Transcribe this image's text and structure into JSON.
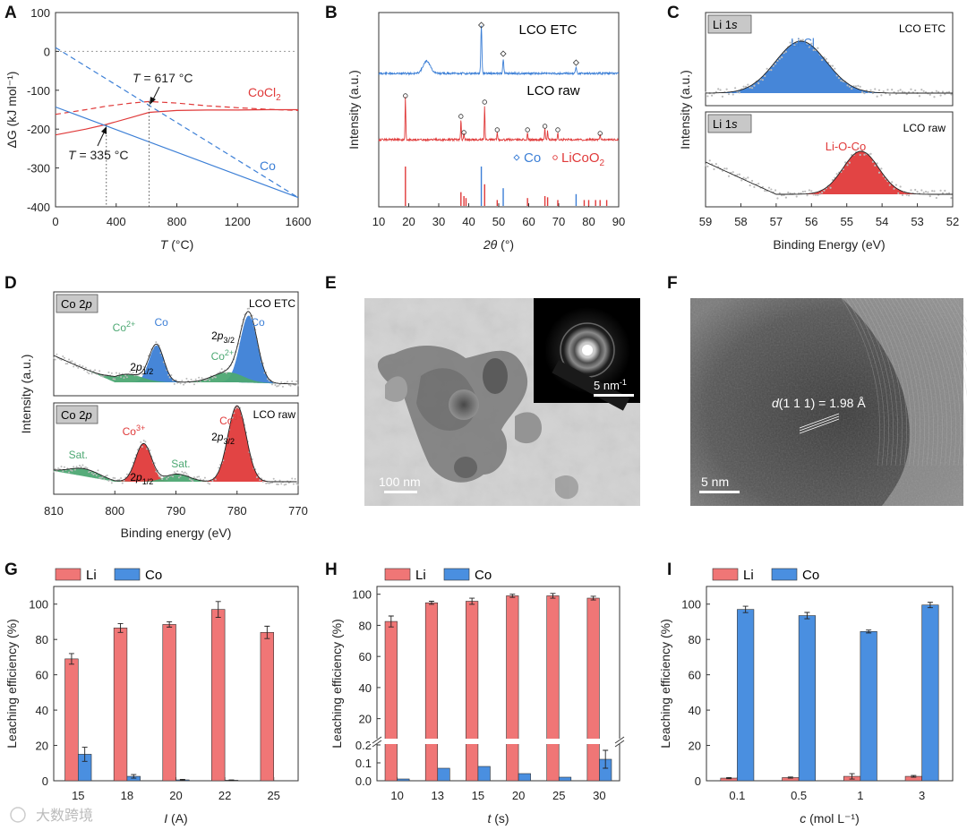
{
  "watermark": "大数跨境",
  "panels": {
    "A": {
      "letter": "A"
    },
    "B": {
      "letter": "B"
    },
    "C": {
      "letter": "C"
    },
    "D": {
      "letter": "D"
    },
    "E": {
      "letter": "E"
    },
    "F": {
      "letter": "F"
    },
    "G": {
      "letter": "G"
    },
    "H": {
      "letter": "H"
    },
    "I": {
      "letter": "I"
    }
  },
  "chart_data": [
    {
      "id": "A",
      "type": "line",
      "xlabel_italic": "T",
      "xlabel_unit": " (°C)",
      "ylabel": "ΔG (kJ mol⁻¹)",
      "xlim": [
        0,
        1600
      ],
      "ylim": [
        -400,
        100
      ],
      "xticks": [
        0,
        400,
        800,
        1200,
        1600
      ],
      "yticks": [
        100,
        0,
        -100,
        -200,
        -300,
        -400
      ],
      "series": [
        {
          "name": "CoCl2 solid",
          "color": "#e03a3a",
          "dash": false,
          "x": [
            0,
            200,
            335,
            500,
            617,
            800,
            1000,
            1200,
            1400,
            1600
          ],
          "y": [
            -215,
            -200,
            -188,
            -170,
            -157,
            -152,
            -151,
            -151,
            -150,
            -150
          ]
        },
        {
          "name": "CoCl2 dashed",
          "color": "#e03a3a",
          "dash": true,
          "x": [
            0,
            200,
            335,
            500,
            617,
            800,
            1000,
            1200,
            1400,
            1600
          ],
          "y": [
            -162,
            -150,
            -141,
            -133,
            -129,
            -133,
            -140,
            -145,
            -149,
            -152
          ]
        },
        {
          "name": "Co solid",
          "color": "#3c7fd6",
          "dash": false,
          "x": [
            0,
            1600
          ],
          "y": [
            -143,
            -376
          ]
        },
        {
          "name": "Co dashed",
          "color": "#3c7fd6",
          "dash": true,
          "x": [
            0,
            1600
          ],
          "y": [
            10,
            -376
          ]
        }
      ],
      "labels": {
        "cocl2_main": "CoCl",
        "cocl2_sub": "2",
        "co": "Co"
      },
      "annotations": [
        {
          "italic": "T",
          "text": " = 617 °C",
          "x": 617
        },
        {
          "italic": "T",
          "text": " = 335 °C",
          "x": 335
        }
      ]
    },
    {
      "id": "B",
      "type": "line",
      "xlabel_italic": "2θ",
      "xlabel_unit": " (°)",
      "ylabel": "Intensity (a.u.)",
      "xlim": [
        10,
        90
      ],
      "xticks": [
        10,
        20,
        30,
        40,
        50,
        60,
        70,
        80,
        90
      ],
      "traces": [
        {
          "name": "LCO ETC",
          "color": "#3c7fd6"
        },
        {
          "name": "LCO raw",
          "color": "#e03a3a"
        }
      ],
      "etc_peaks": [
        {
          "x": 26,
          "h": 0.25,
          "w": 1.2
        },
        {
          "x": 44.2,
          "h": 0.95,
          "w": 0.18
        },
        {
          "x": 51.5,
          "h": 0.28,
          "w": 0.18
        },
        {
          "x": 75.8,
          "h": 0.12,
          "w": 0.2
        }
      ],
      "etc_markers": [
        44.2,
        51.5,
        75.8
      ],
      "raw_peaks": [
        {
          "x": 18.9,
          "h": 0.95,
          "w": 0.12
        },
        {
          "x": 37.4,
          "h": 0.45,
          "w": 0.12
        },
        {
          "x": 38.4,
          "h": 0.15,
          "w": 0.12
        },
        {
          "x": 45.3,
          "h": 0.75,
          "w": 0.12
        },
        {
          "x": 49.5,
          "h": 0.18,
          "w": 0.12
        },
        {
          "x": 59.6,
          "h": 0.18,
          "w": 0.12
        },
        {
          "x": 65.4,
          "h": 0.28,
          "w": 0.12
        },
        {
          "x": 66.3,
          "h": 0.2,
          "w": 0.12
        },
        {
          "x": 69.7,
          "h": 0.15,
          "w": 0.12
        },
        {
          "x": 83.8,
          "h": 0.12,
          "w": 0.12
        }
      ],
      "raw_markers": [
        18.9,
        37.4,
        38.4,
        45.3,
        49.5,
        59.6,
        65.4,
        69.7,
        83.8
      ],
      "ref_co": [
        {
          "x": 44.2,
          "h": 1.0
        },
        {
          "x": 51.5,
          "h": 0.45
        },
        {
          "x": 75.8,
          "h": 0.3
        }
      ],
      "ref_lco": [
        {
          "x": 18.9,
          "h": 1.0
        },
        {
          "x": 37.4,
          "h": 0.35
        },
        {
          "x": 38.4,
          "h": 0.25
        },
        {
          "x": 39.1,
          "h": 0.2
        },
        {
          "x": 45.3,
          "h": 0.55
        },
        {
          "x": 49.5,
          "h": 0.15
        },
        {
          "x": 59.6,
          "h": 0.2
        },
        {
          "x": 65.4,
          "h": 0.25
        },
        {
          "x": 66.3,
          "h": 0.22
        },
        {
          "x": 69.7,
          "h": 0.15
        },
        {
          "x": 78.5,
          "h": 0.15
        },
        {
          "x": 80.0,
          "h": 0.15
        },
        {
          "x": 82.3,
          "h": 0.15
        },
        {
          "x": 83.8,
          "h": 0.15
        },
        {
          "x": 86.0,
          "h": 0.15
        }
      ],
      "legend": {
        "co": "Co",
        "lco_main": "LiCoO",
        "lco_sub": "2"
      }
    },
    {
      "id": "C",
      "type": "area",
      "xlabel": "Binding Energy (eV)",
      "ylabel": "Intensity (a.u.)",
      "xlim": [
        59,
        52
      ],
      "xticks": [
        59,
        58,
        57,
        56,
        55,
        54,
        53,
        52
      ],
      "top": {
        "tag_main": "Li 1",
        "tag_it": "s",
        "sample": "LCO ETC",
        "peak": "Li-Cl",
        "center": 56.3,
        "fwhm": 1.7,
        "color": "#3c7fd6"
      },
      "bottom": {
        "tag_main": "Li 1",
        "tag_it": "s",
        "sample": "LCO raw",
        "peak": "Li-O-Co",
        "center": 54.6,
        "fwhm": 1.2,
        "color": "#e03a3a"
      }
    },
    {
      "id": "D",
      "type": "area",
      "xlabel": "Binding energy (eV)",
      "ylabel": "Intensity (a.u.)",
      "xlim": [
        810,
        770
      ],
      "xticks": [
        810,
        800,
        790,
        780,
        770
      ],
      "top": {
        "tag_main": "Co 2",
        "tag_it": "p",
        "sample": "LCO ETC",
        "peaks": [
          {
            "c": 793.2,
            "w": 1.2,
            "h": 0.55,
            "color": "#3c7fd6",
            "label": "Co"
          },
          {
            "c": 798.0,
            "w": 2.5,
            "h": 0.12,
            "color": "#4da873",
            "label": "Co"
          },
          {
            "c": 778.1,
            "w": 1.4,
            "h": 1.0,
            "color": "#3c7fd6",
            "label": "Co"
          },
          {
            "c": 781.5,
            "w": 2.5,
            "h": 0.15,
            "color": "#4da873",
            "label": "Co"
          }
        ],
        "labels": [
          {
            "main": "Co",
            "sup": "2+",
            "color": "#4da873",
            "x": 798.5
          },
          {
            "main": "Co",
            "sup": "",
            "color": "#3c7fd6",
            "x": 792.4
          },
          {
            "main": "Co",
            "sup": "2+",
            "color": "#4da873",
            "x": 782.4
          },
          {
            "main": "Co",
            "sup": "",
            "color": "#3c7fd6",
            "x": 776.6
          }
        ],
        "orbitals": [
          {
            "main": "2",
            "it": "p",
            "sub": "1/2",
            "x": 795.6
          },
          {
            "main": "2",
            "it": "p",
            "sub": "3/2",
            "x": 782.3
          }
        ]
      },
      "bottom": {
        "tag_main": "Co 2",
        "tag_it": "p",
        "sample": "LCO raw",
        "peaks": [
          {
            "c": 795.3,
            "w": 1.3,
            "h": 0.5,
            "color": "#e03a3a"
          },
          {
            "c": 805.0,
            "w": 2.5,
            "h": 0.1,
            "color": "#4da873"
          },
          {
            "c": 789.8,
            "w": 2.0,
            "h": 0.1,
            "color": "#4da873"
          },
          {
            "c": 780.0,
            "w": 1.5,
            "h": 1.0,
            "color": "#e03a3a"
          }
        ],
        "labels": [
          {
            "main": "Sat.",
            "sup": "",
            "color": "#4da873",
            "x": 806.0
          },
          {
            "main": "Co",
            "sup": "3+",
            "color": "#e03a3a",
            "x": 796.9
          },
          {
            "main": "Sat.",
            "sup": "",
            "color": "#4da873",
            "x": 789.2
          },
          {
            "main": "Co",
            "sup": "3+",
            "color": "#e03a3a",
            "x": 781.0
          }
        ],
        "orbitals": [
          {
            "main": "2",
            "it": "p",
            "sub": "1/2",
            "x": 795.6
          },
          {
            "main": "2",
            "it": "p",
            "sub": "3/2",
            "x": 782.3
          }
        ]
      }
    },
    {
      "id": "G",
      "type": "bar",
      "xlabel_italic": "I",
      "xlabel_unit": " (A)",
      "ylabel": "Leaching efficiency (%)",
      "ylim": [
        0,
        110
      ],
      "yticks": [
        0,
        20,
        40,
        60,
        80,
        100
      ],
      "categories": [
        "15",
        "18",
        "20",
        "22",
        "25"
      ],
      "series": [
        {
          "name": "Li",
          "color": "#f07676",
          "values": [
            69,
            86.5,
            88.5,
            97,
            84
          ],
          "errors": [
            3,
            2.5,
            1.5,
            4.5,
            3.5
          ]
        },
        {
          "name": "Co",
          "color": "#4a8fe0",
          "values": [
            15,
            2.5,
            0.5,
            0.3,
            0
          ],
          "errors": [
            4,
            1,
            0.3,
            0.2,
            0
          ]
        }
      ]
    },
    {
      "id": "H",
      "type": "bar",
      "xlabel_italic": "t",
      "xlabel_unit": " (s)",
      "ylabel": "Leaching efficiency (%)",
      "axis_break": true,
      "lower_ylim": [
        0,
        0.2
      ],
      "lower_ticks": [
        "0.0",
        "0.1",
        "0.2"
      ],
      "upper_ylim": [
        10,
        105
      ],
      "upper_ticks": [
        20,
        40,
        60,
        80,
        100
      ],
      "categories": [
        "10",
        "13",
        "15",
        "20",
        "25",
        "30"
      ],
      "series": [
        {
          "name": "Li",
          "color": "#f07676",
          "values": [
            82.5,
            94.5,
            95.5,
            99,
            99,
            97.5
          ],
          "errors": [
            3.5,
            1,
            2,
            1,
            1.5,
            1.2
          ]
        },
        {
          "name": "Co",
          "color": "#4a8fe0",
          "values": [
            0.01,
            0.07,
            0.08,
            0.04,
            0.02,
            0.12
          ],
          "errors": [
            0,
            0,
            0,
            0,
            0,
            0.05
          ]
        }
      ]
    },
    {
      "id": "I",
      "type": "bar",
      "xlabel_italic": "c",
      "xlabel_unit": " (mol L⁻¹)",
      "ylabel": "Leaching efficiency (%)",
      "ylim": [
        0,
        110
      ],
      "yticks": [
        0,
        20,
        40,
        60,
        80,
        100
      ],
      "categories": [
        "0.1",
        "0.5",
        "1",
        "3"
      ],
      "series": [
        {
          "name": "Li",
          "color": "#f07676",
          "values": [
            1.5,
            1.8,
            2.5,
            2.5
          ],
          "errors": [
            0.3,
            0.3,
            1.5,
            0.5
          ]
        },
        {
          "name": "Co",
          "color": "#4a8fe0",
          "values": [
            97,
            93.5,
            84.5,
            99.5
          ],
          "errors": [
            1.8,
            1.8,
            0.8,
            1.5
          ]
        }
      ]
    }
  ],
  "images": {
    "E": {
      "inset_scale": "5 nm",
      "inset_scale_sup": "-1",
      "scale": "100 nm"
    },
    "F": {
      "label_main": "d(1 1 1) = 1.98 Å",
      "d": "d",
      "rest": "(1 1 1) = 1.98 Å",
      "scale": "5 nm"
    }
  }
}
